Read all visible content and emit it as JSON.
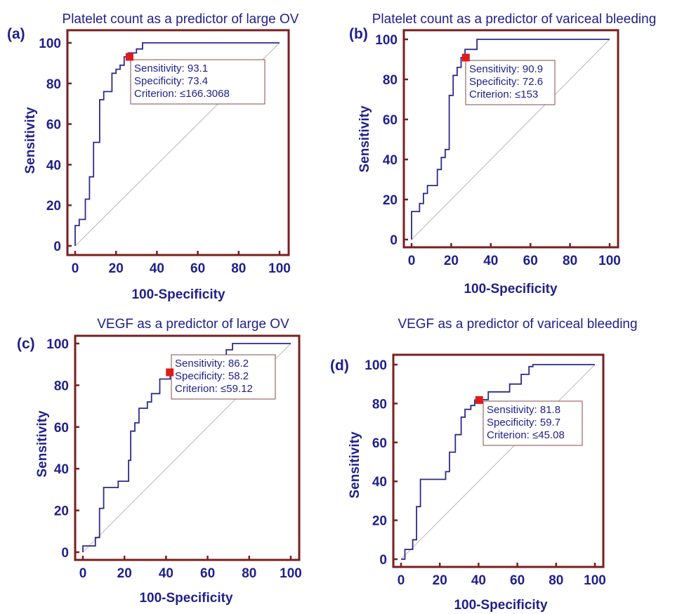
{
  "chart_data": [
    {
      "type": "line",
      "panel_label": "(a)",
      "title": "Platelet count as a predictor of large OV",
      "xlabel": "100-Specificity",
      "ylabel": "Sensitivity",
      "xlim": [
        0,
        100
      ],
      "ylim": [
        0,
        100
      ],
      "xticks": [
        0,
        20,
        40,
        60,
        80,
        100
      ],
      "yticks": [
        0,
        20,
        40,
        60,
        80,
        100
      ],
      "series": [
        {
          "x": [
            0,
            0,
            2,
            2,
            5,
            5,
            7,
            7,
            9,
            9,
            12,
            12,
            14,
            14,
            18,
            18,
            20,
            20,
            22,
            22,
            24,
            24,
            26,
            26,
            30,
            30,
            33,
            33,
            100
          ],
          "y": [
            0,
            10,
            10,
            13,
            13,
            23,
            23,
            34,
            34,
            51,
            51,
            72,
            72,
            76,
            76,
            85,
            85,
            87,
            87,
            89,
            89,
            93.1,
            93.1,
            95,
            95,
            97,
            97,
            100,
            100
          ]
        }
      ],
      "cutoff": {
        "x": 26.6,
        "y": 93.1
      },
      "annotation": [
        "Sensitivity: 93.1",
        "Specificity: 73.4",
        "Criterion: ≤166.3068"
      ]
    },
    {
      "type": "line",
      "panel_label": "(b)",
      "title": "Platelet count as a predictor of variceal bleeding",
      "xlabel": "100-Specificity",
      "ylabel": "Sensitivity",
      "xlim": [
        0,
        100
      ],
      "ylim": [
        0,
        100
      ],
      "xticks": [
        0,
        20,
        40,
        60,
        80,
        100
      ],
      "yticks": [
        0,
        20,
        40,
        60,
        80,
        100
      ],
      "series": [
        {
          "x": [
            0,
            0,
            4,
            4,
            6,
            6,
            8,
            8,
            13,
            13,
            15,
            15,
            17,
            17,
            19,
            19,
            21,
            21,
            23,
            23,
            25,
            25,
            27,
            27,
            33,
            33,
            100
          ],
          "y": [
            0,
            14,
            14,
            18,
            18,
            23,
            23,
            27,
            27,
            35,
            35,
            41,
            41,
            45,
            45,
            72,
            72,
            82,
            82,
            86,
            86,
            90.9,
            90.9,
            95,
            95,
            100,
            100
          ]
        }
      ],
      "cutoff": {
        "x": 27.4,
        "y": 90.9
      },
      "annotation": [
        "Sensitivity: 90.9",
        "Specificity: 72.6",
        "Criterion: ≤153"
      ]
    },
    {
      "type": "line",
      "panel_label": "(c)",
      "title": "VEGF as a predictor of large OV",
      "xlabel": "100-Specificity",
      "ylabel": "Sensitivity",
      "xlim": [
        0,
        100
      ],
      "ylim": [
        0,
        100
      ],
      "xticks": [
        0,
        20,
        40,
        60,
        80,
        100
      ],
      "yticks": [
        0,
        20,
        40,
        60,
        80,
        100
      ],
      "series": [
        {
          "x": [
            0,
            0,
            6,
            6,
            8,
            8,
            10,
            10,
            17,
            17,
            22,
            22,
            23,
            23,
            25,
            25,
            27,
            27,
            31,
            31,
            33,
            33,
            37,
            37,
            42,
            42,
            56,
            56,
            62,
            62,
            69,
            69,
            72,
            72,
            87,
            87,
            100
          ],
          "y": [
            0,
            3,
            3,
            7,
            7,
            21,
            21,
            31,
            31,
            34,
            34,
            44,
            44,
            58,
            58,
            62,
            62,
            69,
            69,
            72,
            72,
            76,
            76,
            83,
            83,
            86.2,
            86.2,
            90,
            90,
            93,
            93,
            97,
            97,
            100,
            100,
            100,
            100
          ]
        }
      ],
      "cutoff": {
        "x": 41.8,
        "y": 86.2
      },
      "annotation": [
        "Sensitivity: 86.2",
        "Specificity: 58.2",
        "Criterion: ≤59.12"
      ]
    },
    {
      "type": "line",
      "panel_label": "(d)",
      "title": "VEGF as a predictor of variceal bleeding",
      "xlabel": "100-Specificity",
      "ylabel": "Sensitivity",
      "xlim": [
        0,
        100
      ],
      "ylim": [
        0,
        100
      ],
      "xticks": [
        0,
        20,
        40,
        60,
        80,
        100
      ],
      "yticks": [
        0,
        20,
        40,
        60,
        80,
        100
      ],
      "series": [
        {
          "x": [
            0,
            0,
            2,
            2,
            6,
            6,
            8,
            8,
            10,
            10,
            23,
            23,
            25,
            25,
            28,
            28,
            31,
            31,
            33,
            33,
            36,
            36,
            38,
            38,
            40,
            40,
            45,
            45,
            56,
            56,
            62,
            62,
            66,
            66,
            68,
            68,
            100
          ],
          "y": [
            0,
            0,
            0,
            5,
            5,
            10,
            10,
            27,
            27,
            41,
            41,
            45,
            45,
            55,
            55,
            64,
            64,
            73,
            73,
            77,
            77,
            79,
            79,
            81.8,
            81.8,
            82,
            82,
            86,
            86,
            90,
            90,
            95,
            95,
            99,
            99,
            100,
            100
          ]
        }
      ],
      "cutoff": {
        "x": 40.3,
        "y": 81.8
      },
      "annotation": [
        "Sensitivity: 81.8",
        "Specificity: 59.7",
        "Criterion: ≤45.08"
      ]
    }
  ]
}
